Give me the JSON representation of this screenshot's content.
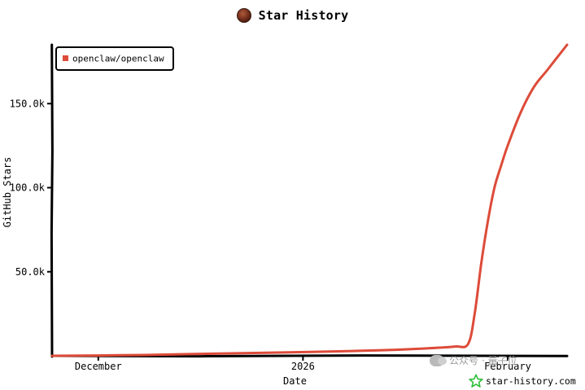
{
  "header": {
    "title": "Star History"
  },
  "watermark": {
    "text": "公众号 · 量子位"
  },
  "site": {
    "label": "star-history.com"
  },
  "colors": {
    "series": "#dd4b39",
    "axis": "#000000"
  },
  "icons": {
    "avatar": "owner-avatar",
    "site": "star-outline-icon",
    "watermark": "wechat-icon"
  },
  "chart_data": {
    "type": "line",
    "title": "Star History",
    "xlabel": "Date",
    "ylabel": "GitHub Stars",
    "y_ticks": [
      50000,
      100000,
      150000
    ],
    "y_tick_labels": [
      "50.0k",
      "100.0k",
      "150.0k"
    ],
    "ylim": [
      0,
      185000
    ],
    "x_ticks": [
      {
        "label": "December",
        "date": "2025-12-01"
      },
      {
        "label": "2026",
        "date": "2026-01-01"
      },
      {
        "label": "February",
        "date": "2026-02-01"
      }
    ],
    "xlim": [
      "2025-11-24",
      "2026-02-10"
    ],
    "grid": false,
    "legend": {
      "position": "top-left"
    },
    "series": [
      {
        "name": "openclaw/openclaw",
        "color": "#dd4b39",
        "points": [
          [
            "2025-11-24",
            0
          ],
          [
            "2025-12-01",
            200
          ],
          [
            "2025-12-08",
            500
          ],
          [
            "2025-12-15",
            1000
          ],
          [
            "2025-12-22",
            1500
          ],
          [
            "2025-12-29",
            2000
          ],
          [
            "2026-01-05",
            2500
          ],
          [
            "2026-01-10",
            3000
          ],
          [
            "2026-01-15",
            3600
          ],
          [
            "2026-01-20",
            4500
          ],
          [
            "2026-01-24",
            5500
          ],
          [
            "2026-01-26",
            7000
          ],
          [
            "2026-01-27",
            25000
          ],
          [
            "2026-01-28",
            55000
          ],
          [
            "2026-01-29",
            80000
          ],
          [
            "2026-01-30",
            100000
          ],
          [
            "2026-01-31",
            113000
          ],
          [
            "2026-02-01",
            125000
          ],
          [
            "2026-02-03",
            145000
          ],
          [
            "2026-02-05",
            160000
          ],
          [
            "2026-02-07",
            170000
          ],
          [
            "2026-02-10",
            185000
          ]
        ]
      }
    ]
  }
}
